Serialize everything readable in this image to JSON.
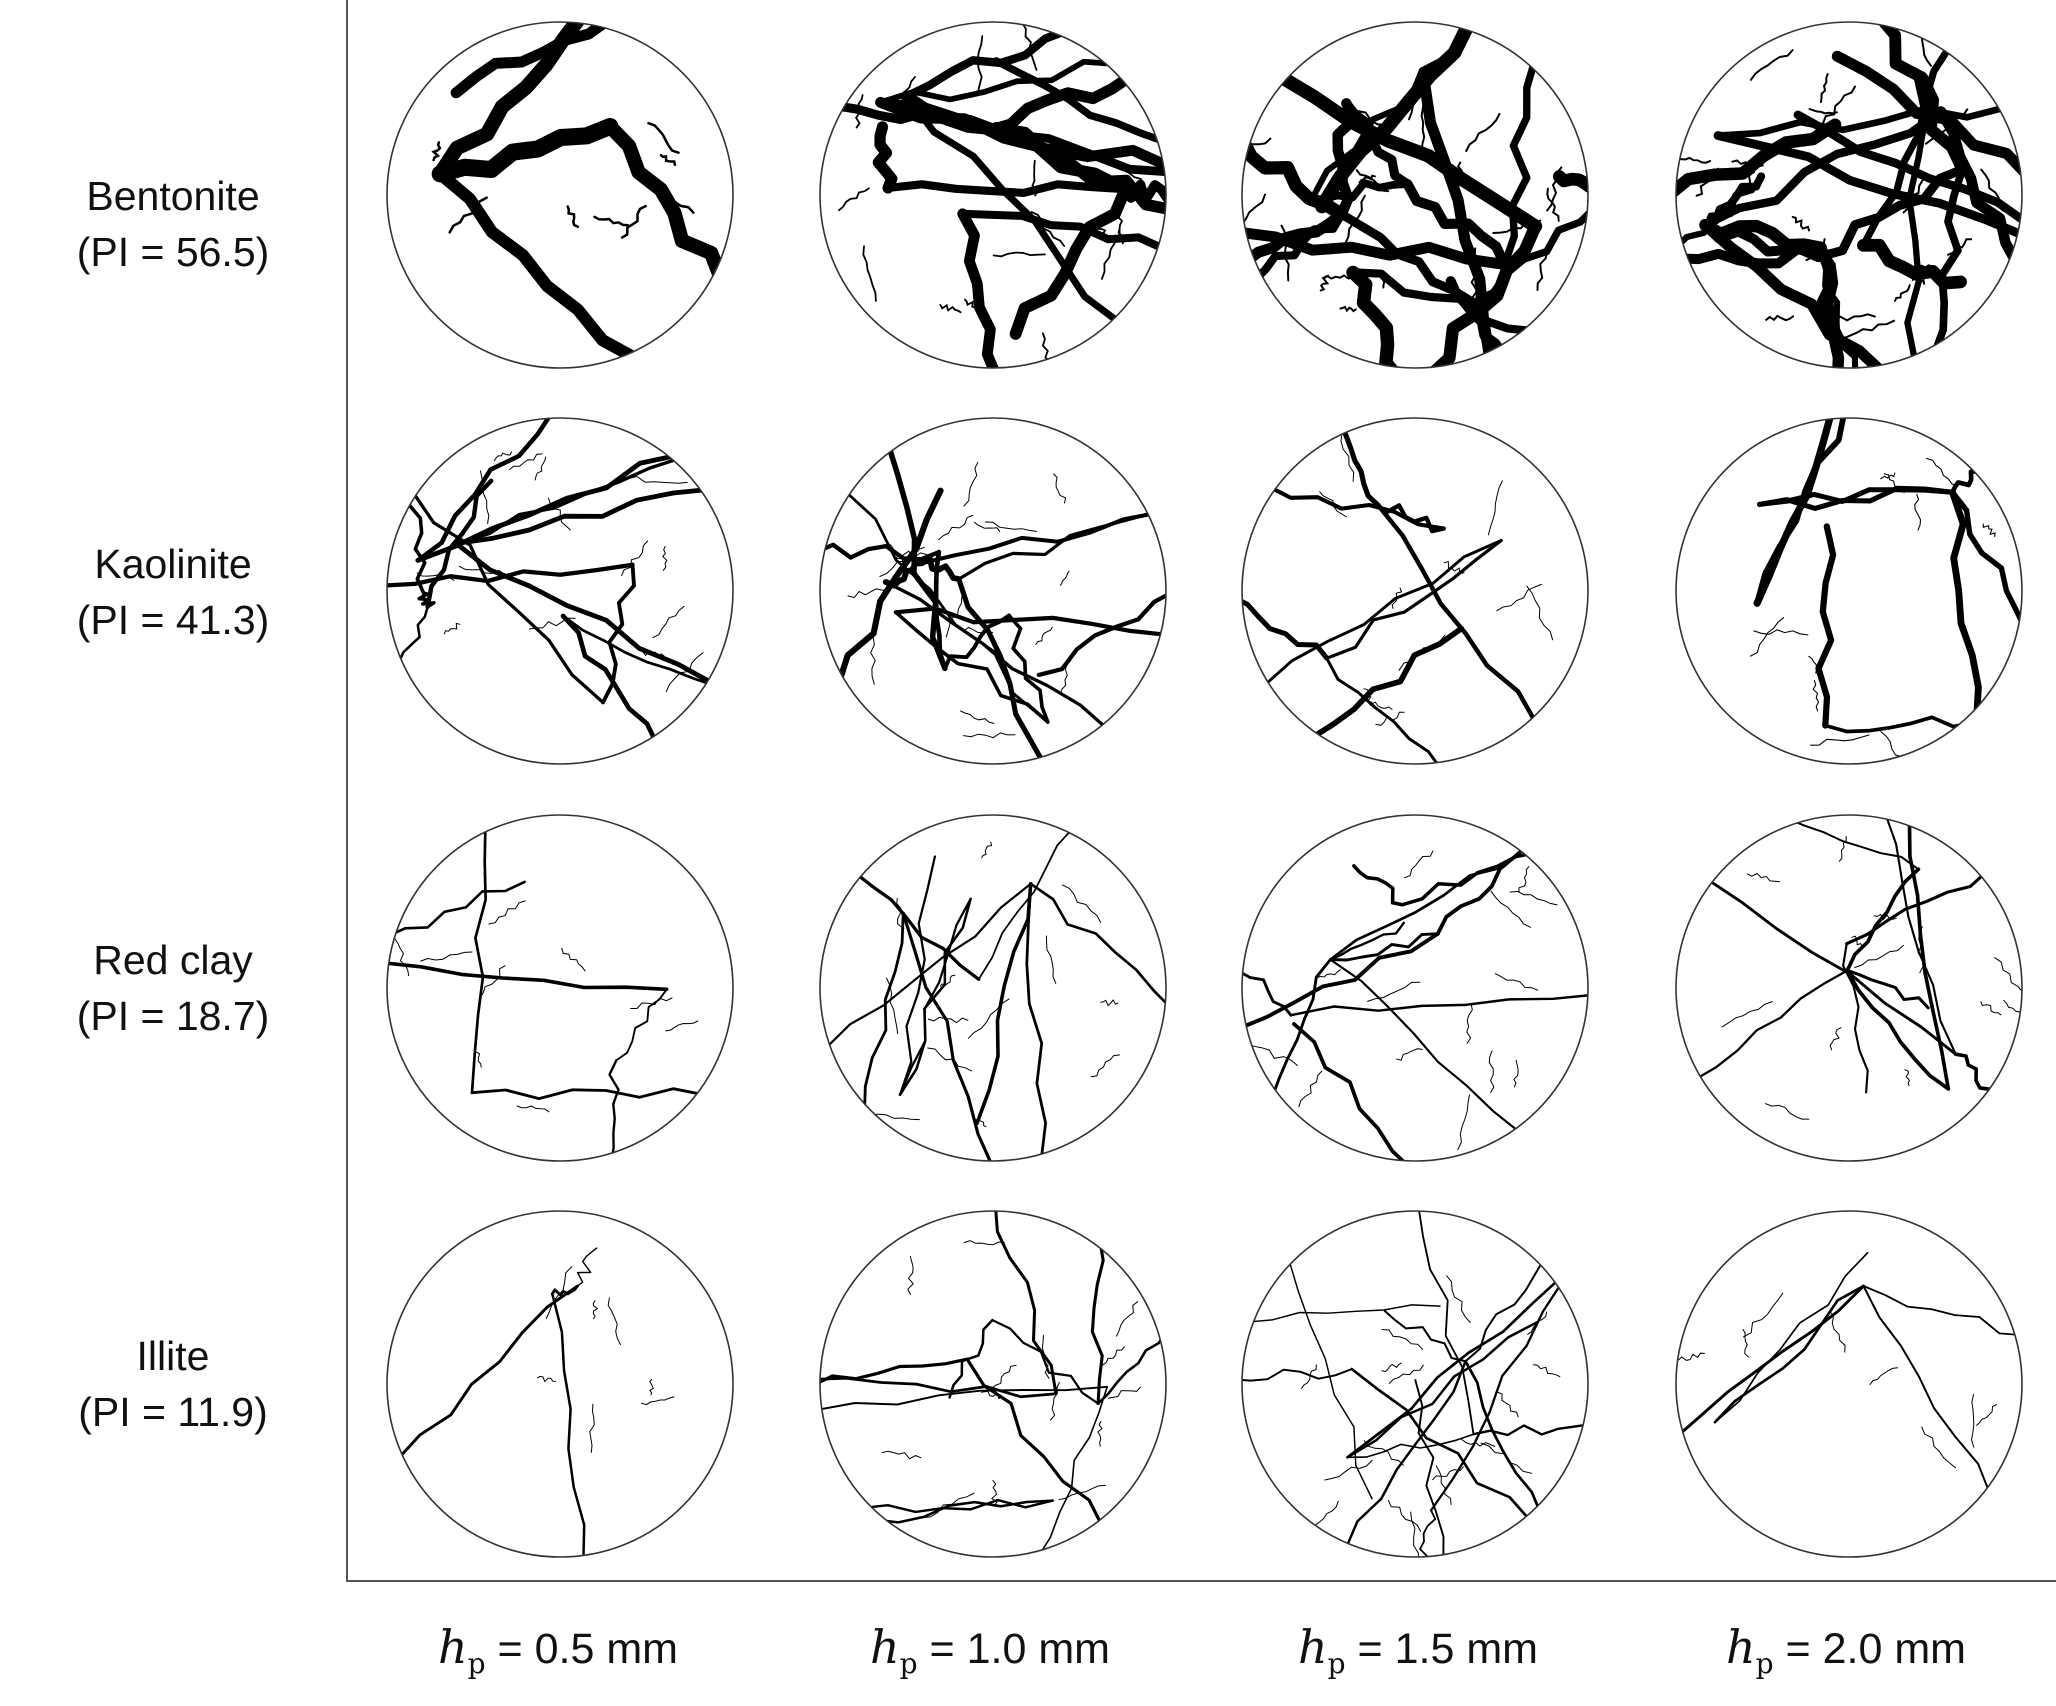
{
  "rows": [
    {
      "name": "Bentonite",
      "pi": "(PI = 56.5)"
    },
    {
      "name": "Kaolinite",
      "pi": "(PI = 41.3)"
    },
    {
      "name": "Red clay",
      "pi": "(PI = 18.7)"
    },
    {
      "name": "Illite",
      "pi": "(PI = 11.9)"
    }
  ],
  "columns": [
    {
      "var": "h",
      "sub": "p",
      "value": " = 0.5 mm"
    },
    {
      "var": "h",
      "sub": "p",
      "value": " = 1.0 mm"
    },
    {
      "var": "h",
      "sub": "p",
      "value": " = 1.5 mm"
    },
    {
      "var": "h",
      "sub": "p",
      "value": " = 2.0 mm"
    }
  ],
  "colors": {
    "crack": "#000000",
    "outline": "#333333",
    "background": "#ffffff",
    "axis": "#555555"
  }
}
